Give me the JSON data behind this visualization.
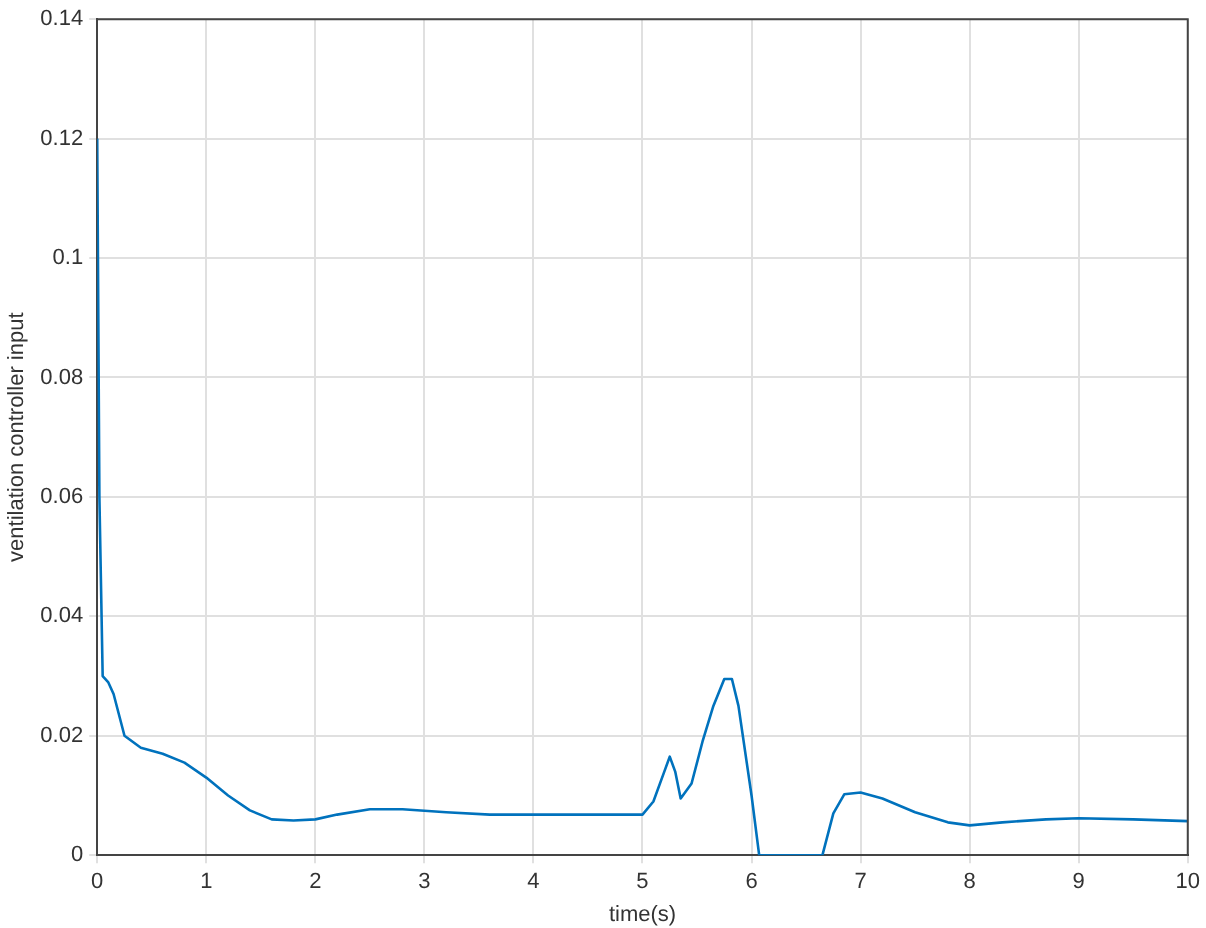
{
  "chart_data": {
    "type": "line",
    "xlabel": "time(s)",
    "ylabel": "ventilation controller input",
    "xlim": [
      0,
      10
    ],
    "xticks": [
      0,
      1,
      2,
      3,
      4,
      5,
      6,
      7,
      8,
      9,
      10
    ],
    "ylim": [
      0,
      0.14
    ],
    "yticks": [
      0,
      0.02,
      0.04,
      0.06,
      0.08,
      0.1,
      0.12,
      0.14
    ],
    "grid": true,
    "legend": false,
    "marker": "none",
    "line_style": "solid",
    "series": [
      {
        "color": "#0072bd",
        "x": [
          0,
          0.02,
          0.05,
          0.1,
          0.15,
          0.25,
          0.4,
          0.6,
          0.8,
          1.0,
          1.2,
          1.4,
          1.6,
          1.8,
          2.0,
          2.2,
          2.5,
          2.8,
          3.2,
          3.6,
          4.0,
          4.5,
          5.0,
          5.1,
          5.2,
          5.25,
          5.3,
          5.35,
          5.45,
          5.55,
          5.65,
          5.75,
          5.82,
          5.88,
          6.0,
          6.07,
          6.65,
          6.75,
          6.85,
          7.0,
          7.2,
          7.5,
          7.8,
          8.0,
          8.3,
          8.7,
          9.0,
          9.5,
          10
        ],
        "values": [
          0.12,
          0.06,
          0.03,
          0.029,
          0.027,
          0.02,
          0.018,
          0.017,
          0.0155,
          0.013,
          0.01,
          0.0075,
          0.006,
          0.0058,
          0.006,
          0.0068,
          0.0077,
          0.0077,
          0.0072,
          0.0068,
          0.0068,
          0.0068,
          0.0068,
          0.009,
          0.014,
          0.0165,
          0.014,
          0.0095,
          0.012,
          0.019,
          0.025,
          0.0295,
          0.0295,
          0.025,
          0.01,
          0,
          0,
          0.007,
          0.0102,
          0.0105,
          0.0095,
          0.0072,
          0.0055,
          0.005,
          0.0055,
          0.006,
          0.0062,
          0.006,
          0.0057
        ]
      }
    ]
  }
}
